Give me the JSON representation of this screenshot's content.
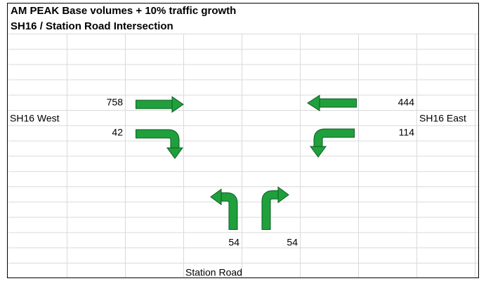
{
  "header": {
    "title": "AM PEAK Base volumes + 10% traffic growth",
    "subtitle": "SH16 / Station Road Intersection"
  },
  "approaches": {
    "west": "SH16 West",
    "east": "SH16 East",
    "south": "Station Road"
  },
  "movements": [
    {
      "approach": "SH16 West",
      "volume": 758
    },
    {
      "approach": "SH16 West",
      "volume": 42
    },
    {
      "approach": "SH16 East",
      "volume": 444
    },
    {
      "approach": "SH16 East",
      "volume": 114
    },
    {
      "approach": "Station Road",
      "volume": 54
    },
    {
      "approach": "Station Road",
      "volume": 54
    }
  ]
}
